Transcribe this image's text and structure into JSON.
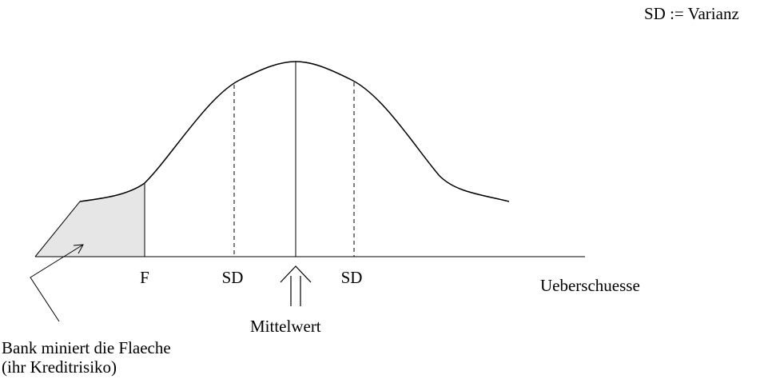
{
  "legend_note": "SD := Varianz",
  "axis": {
    "x_label": "Ueberschuesse",
    "ticks": {
      "f": "F",
      "sd_left": "SD",
      "sd_right": "SD"
    }
  },
  "annotations": {
    "mean": "Mittelwert",
    "area_line1": "Bank miniert die Flaeche",
    "area_line2": "(ihr Kreditrisiko)"
  },
  "colors": {
    "ink": "#000000",
    "shaded_area": "#e6e6e6"
  }
}
